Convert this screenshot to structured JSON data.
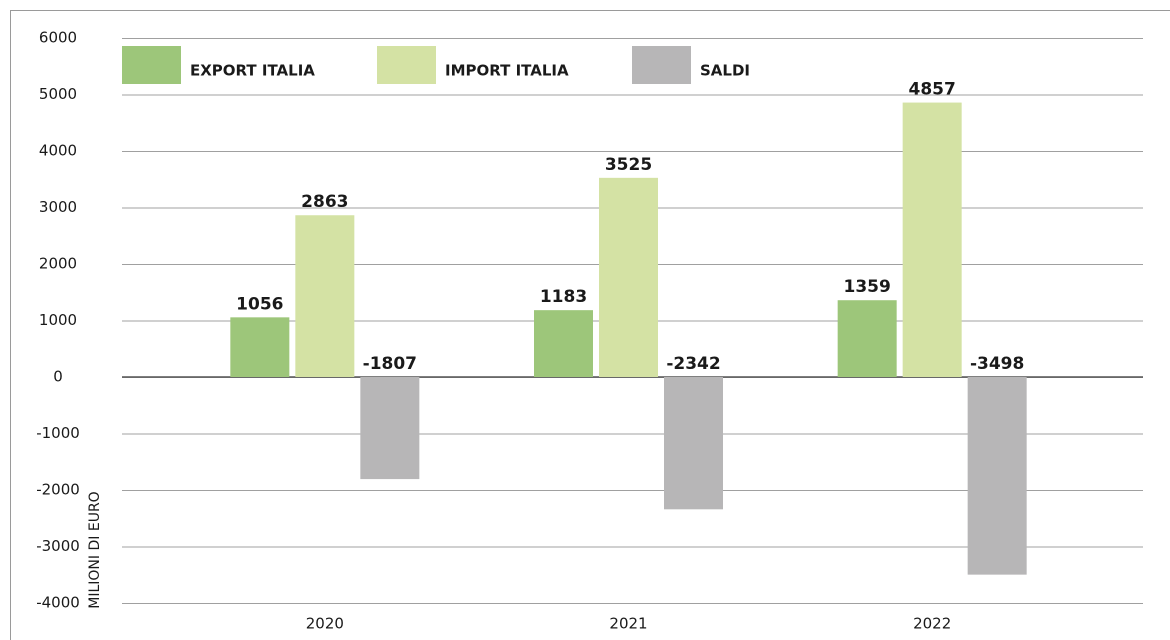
{
  "chart_data": {
    "type": "bar",
    "y_label": "MILIONI DI EURO",
    "categories": [
      "2020",
      "2021",
      "2022"
    ],
    "series": [
      {
        "name": "EXPORT ITALIA",
        "color": "#9dc67a",
        "values": [
          1056,
          1183,
          1359
        ]
      },
      {
        "name": "IMPORT ITALIA",
        "color": "#d4e2a4",
        "values": [
          2863,
          3525,
          4857
        ]
      },
      {
        "name": "SALDI",
        "color": "#b7b6b7",
        "values": [
          -1807,
          -2342,
          -3498
        ]
      }
    ],
    "ylim": [
      -4000,
      6000
    ],
    "yticks": [
      -4000,
      -3000,
      -2000,
      -1000,
      0,
      1000,
      2000,
      3000,
      4000,
      5000,
      6000
    ],
    "grid": true
  }
}
